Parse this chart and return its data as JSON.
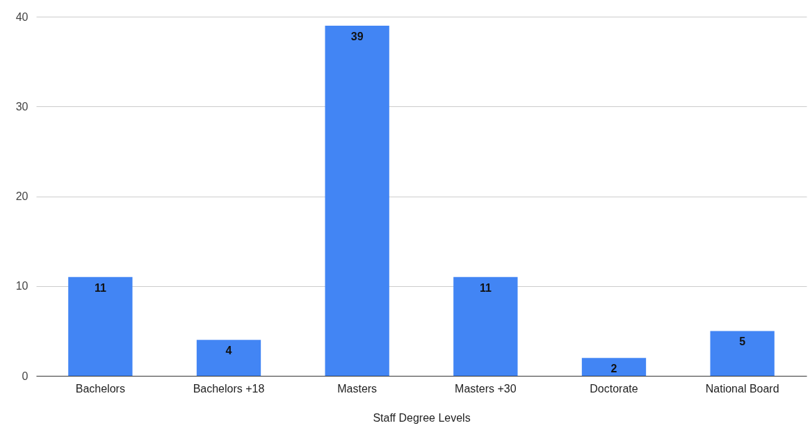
{
  "chart_data": {
    "type": "bar",
    "xlabel": "Staff Degree Levels",
    "categories": [
      "Bachelors",
      "Bachelors +18",
      "Masters",
      "Masters +30",
      "Doctorate",
      "National Board"
    ],
    "values": [
      11,
      4,
      39,
      11,
      2,
      5
    ],
    "color": "#4285f4",
    "ylim": [
      0,
      40
    ],
    "yticks": [
      0,
      10,
      20,
      30,
      40
    ],
    "grid": "y",
    "data_labels": true
  }
}
